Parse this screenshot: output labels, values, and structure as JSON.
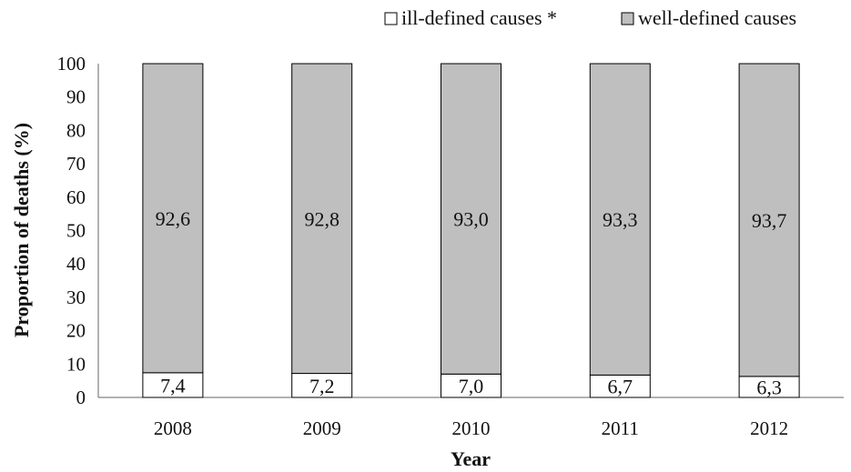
{
  "chart_data": {
    "type": "bar",
    "stacked": true,
    "categories": [
      "2008",
      "2009",
      "2010",
      "2011",
      "2012"
    ],
    "series": [
      {
        "name": "ill-defined causes *",
        "values": [
          7.4,
          7.2,
          7.0,
          6.7,
          6.3
        ],
        "labels": [
          "7,4",
          "7,2",
          "7,0",
          "6,7",
          "6,3"
        ],
        "color": "#ffffff"
      },
      {
        "name": "well-defined causes",
        "values": [
          92.6,
          92.8,
          93.0,
          93.3,
          93.7
        ],
        "labels": [
          "92,6",
          "92,8",
          "93,0",
          "93,3",
          "93,7"
        ],
        "color": "#bfbfbf"
      }
    ],
    "xlabel": "Year",
    "ylabel": "Proportion of deaths (%)",
    "ylim": [
      0,
      100
    ],
    "yticks": [
      0,
      10,
      20,
      30,
      40,
      50,
      60,
      70,
      80,
      90,
      100
    ],
    "grid": false,
    "legend_position": "top-right"
  }
}
